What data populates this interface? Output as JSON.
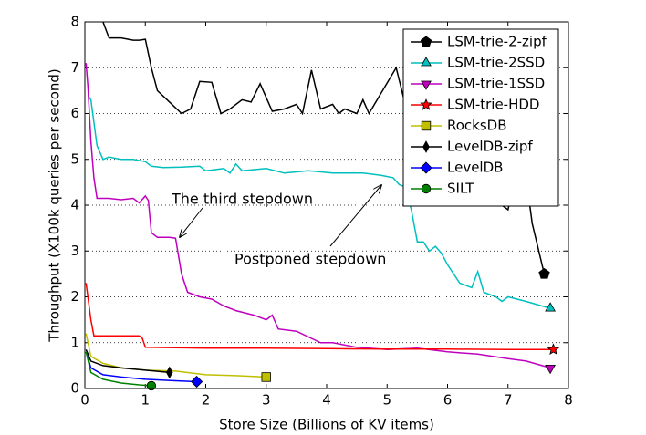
{
  "chart_data": {
    "type": "line",
    "xlabel": "Store Size (Billions of KV items)",
    "ylabel": "Throughput (X100k queries per second)",
    "xlim": [
      0,
      8
    ],
    "ylim": [
      0,
      8
    ],
    "xticks": [
      0,
      1,
      2,
      3,
      4,
      5,
      6,
      7,
      8
    ],
    "yticks": [
      0,
      1,
      2,
      3,
      4,
      5,
      6,
      7,
      8
    ],
    "grid": "y",
    "legend": "upper right",
    "annotations": [
      "The third stepdown",
      "Postponed stepdown"
    ],
    "series": [
      {
        "name": "LSM-trie-2-zipf",
        "color": "#000000",
        "marker": "pentagon",
        "x": [
          0.3,
          0.4,
          0.6,
          0.8,
          0.9,
          1.0,
          1.1,
          1.2,
          1.4,
          1.6,
          1.75,
          1.9,
          2.1,
          2.25,
          2.4,
          2.6,
          2.75,
          2.9,
          3.1,
          3.3,
          3.5,
          3.6,
          3.75,
          3.9,
          4.1,
          4.2,
          4.3,
          4.5,
          4.6,
          4.7,
          5.15,
          5.3,
          6.9,
          7.0,
          7.1,
          7.3,
          7.4,
          7.6
        ],
        "values": [
          8.0,
          7.65,
          7.65,
          7.6,
          7.6,
          7.62,
          7.0,
          6.5,
          6.25,
          6.0,
          6.1,
          6.7,
          6.68,
          6.0,
          6.1,
          6.3,
          6.25,
          6.65,
          6.05,
          6.1,
          6.2,
          6.0,
          6.95,
          6.1,
          6.2,
          6.0,
          6.1,
          6.0,
          6.3,
          6.0,
          7.0,
          6.2,
          4.0,
          3.9,
          4.5,
          4.6,
          3.6,
          2.5
        ]
      },
      {
        "name": "LSM-trie-2SSD",
        "color": "#00bfbf",
        "marker": "triangle-up",
        "x": [
          0.05,
          0.1,
          0.2,
          0.3,
          0.4,
          0.6,
          0.8,
          1.0,
          1.1,
          1.3,
          1.6,
          1.9,
          2.0,
          2.3,
          2.4,
          2.5,
          2.6,
          3.0,
          3.3,
          3.7,
          4.1,
          4.6,
          4.9,
          5.1,
          5.2,
          5.3,
          5.4,
          5.5,
          5.6,
          5.7,
          5.8,
          5.9,
          6.0,
          6.2,
          6.4,
          6.5,
          6.6,
          6.8,
          6.9,
          7.0,
          7.3,
          7.7
        ],
        "values": [
          6.4,
          6.3,
          5.3,
          5.0,
          5.05,
          5.0,
          5.0,
          4.95,
          4.85,
          4.82,
          4.83,
          4.85,
          4.75,
          4.8,
          4.7,
          4.9,
          4.75,
          4.8,
          4.7,
          4.75,
          4.7,
          4.7,
          4.65,
          4.6,
          4.45,
          4.4,
          3.9,
          3.2,
          3.2,
          3.0,
          3.1,
          2.95,
          2.7,
          2.3,
          2.2,
          2.55,
          2.1,
          2.0,
          1.9,
          2.0,
          1.9,
          1.75
        ]
      },
      {
        "name": "LSM-trie-1SSD",
        "color": "#bf00bf",
        "marker": "triangle-down",
        "x": [
          0.02,
          0.05,
          0.1,
          0.15,
          0.2,
          0.4,
          0.6,
          0.8,
          0.9,
          1.0,
          1.05,
          1.1,
          1.2,
          1.4,
          1.5,
          1.6,
          1.7,
          1.9,
          2.1,
          2.3,
          2.5,
          2.8,
          3.0,
          3.1,
          3.2,
          3.5,
          3.9,
          4.1,
          4.5,
          5.0,
          5.5,
          6.0,
          6.5,
          7.0,
          7.3,
          7.7
        ],
        "values": [
          7.1,
          6.6,
          5.4,
          4.6,
          4.15,
          4.15,
          4.12,
          4.15,
          4.05,
          4.2,
          4.1,
          3.4,
          3.3,
          3.3,
          3.28,
          2.5,
          2.1,
          2.0,
          1.95,
          1.8,
          1.7,
          1.6,
          1.5,
          1.6,
          1.3,
          1.25,
          1.0,
          1.0,
          0.9,
          0.85,
          0.88,
          0.8,
          0.75,
          0.65,
          0.6,
          0.45
        ]
      },
      {
        "name": "LSM-trie-HDD",
        "color": "#ff0000",
        "marker": "star",
        "x": [
          0.02,
          0.05,
          0.1,
          0.15,
          0.5,
          0.9,
          0.95,
          1.0,
          2,
          3,
          4,
          5,
          6,
          7,
          7.75
        ],
        "values": [
          2.3,
          2.0,
          1.5,
          1.15,
          1.15,
          1.15,
          1.1,
          0.9,
          0.88,
          0.88,
          0.87,
          0.86,
          0.86,
          0.85,
          0.85
        ]
      },
      {
        "name": "RocksDB",
        "color": "#bfbf00",
        "marker": "square",
        "x": [
          0.02,
          0.1,
          0.3,
          0.6,
          1.0,
          1.5,
          2.0,
          2.5,
          3.0
        ],
        "values": [
          1.2,
          0.7,
          0.55,
          0.45,
          0.4,
          0.38,
          0.3,
          0.28,
          0.25
        ]
      },
      {
        "name": "LevelDB-zipf",
        "color": "#000000",
        "marker": "thin-diamond",
        "x": [
          0.02,
          0.1,
          0.3,
          0.6,
          1.0,
          1.4
        ],
        "values": [
          0.85,
          0.6,
          0.5,
          0.45,
          0.4,
          0.35
        ]
      },
      {
        "name": "LevelDB",
        "color": "#0000ff",
        "marker": "diamond",
        "x": [
          0.02,
          0.1,
          0.3,
          0.6,
          1.0,
          1.5,
          1.85
        ],
        "values": [
          0.8,
          0.45,
          0.3,
          0.25,
          0.2,
          0.17,
          0.15
        ]
      },
      {
        "name": "SILT",
        "color": "#008000",
        "marker": "circle",
        "x": [
          0.02,
          0.1,
          0.3,
          0.6,
          0.9,
          1.1
        ],
        "values": [
          0.8,
          0.35,
          0.2,
          0.12,
          0.08,
          0.06
        ]
      }
    ]
  }
}
